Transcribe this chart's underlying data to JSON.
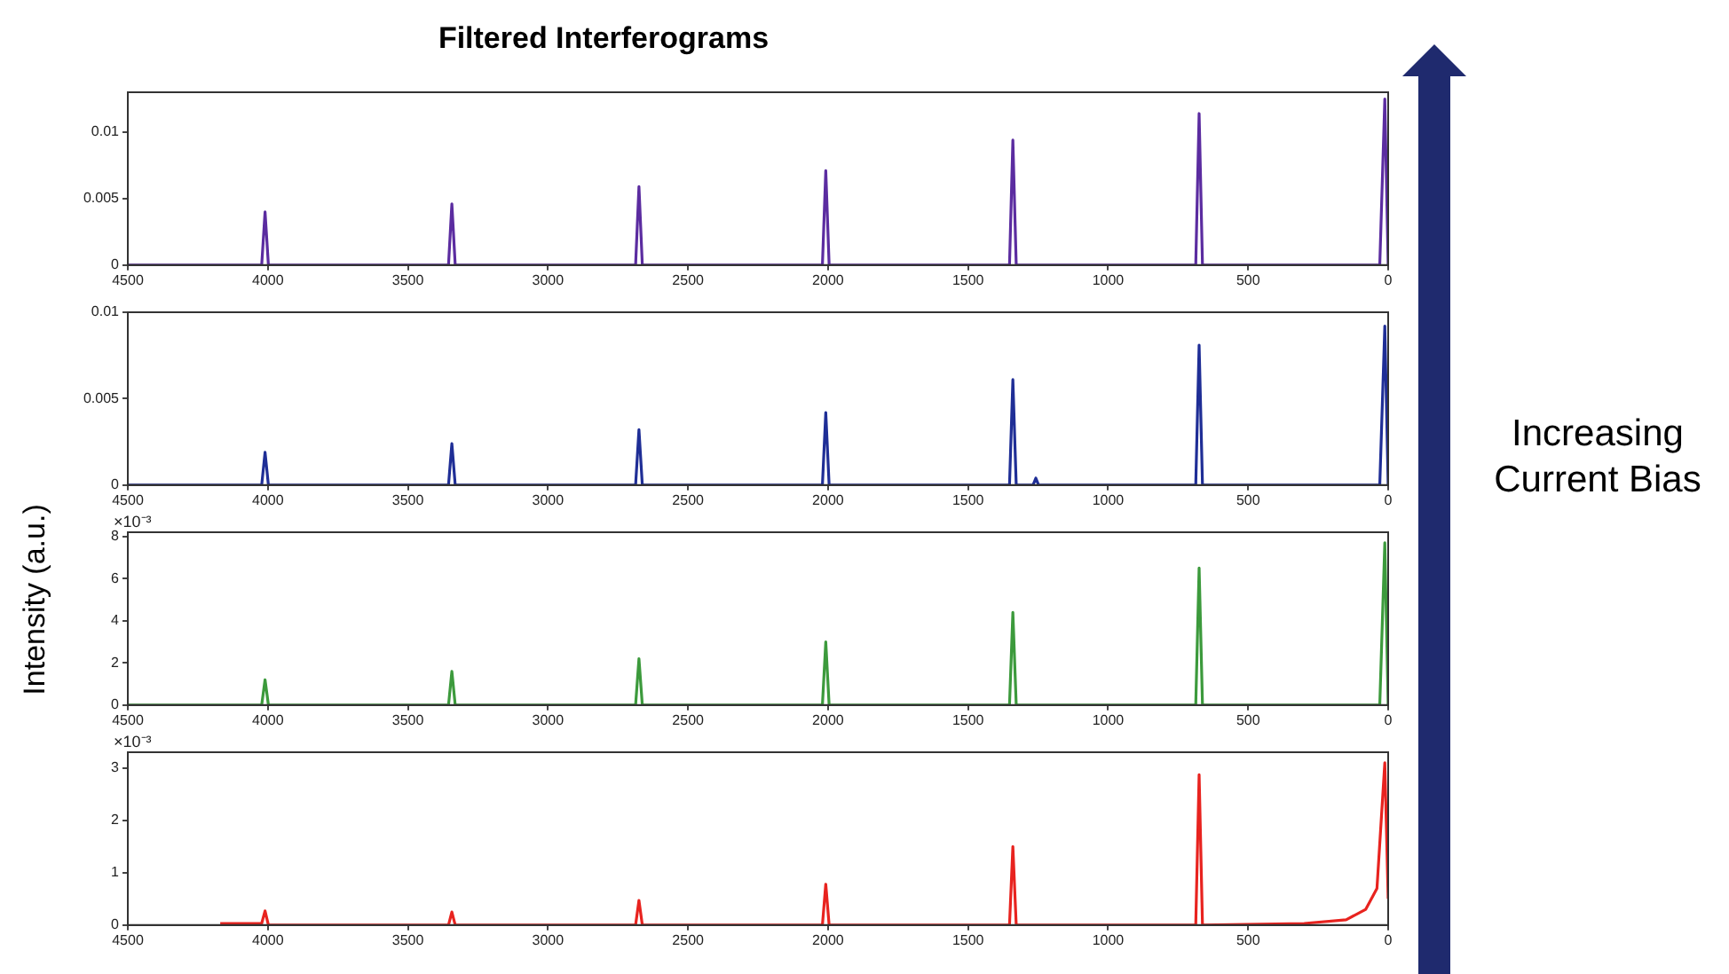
{
  "chart_data": [
    {
      "type": "line",
      "title": "Filtered Interferograms",
      "xlim": [
        4500,
        0
      ],
      "xticks": [
        4500,
        4000,
        3500,
        3000,
        2500,
        2000,
        1500,
        1000,
        500,
        0
      ],
      "ylim": [
        0,
        0.013
      ],
      "yticks": [
        0,
        0.005,
        0.01
      ],
      "marker": "none",
      "legend": false,
      "x": [
        4500,
        4022,
        4010,
        3998,
        3355,
        3343,
        3331,
        2687,
        2675,
        2663,
        2020,
        2008,
        1996,
        1352,
        1340,
        1328,
        687,
        675,
        663,
        30,
        12,
        0
      ],
      "series": [
        {
          "color": "#5b2ca0",
          "values": [
            0,
            0,
            0.004,
            0,
            0,
            0.0046,
            0,
            0,
            0.0059,
            0,
            0,
            0.0071,
            0,
            0,
            0.0094,
            0,
            0,
            0.0114,
            0,
            0,
            0.0125,
            0
          ]
        }
      ]
    },
    {
      "type": "line",
      "xlim": [
        4500,
        0
      ],
      "xticks": [
        4500,
        4000,
        3500,
        3000,
        2500,
        2000,
        1500,
        1000,
        500,
        0
      ],
      "ylim": [
        0,
        0.01
      ],
      "yticks": [
        0,
        0.005,
        0.01
      ],
      "marker": "none",
      "legend": false,
      "x": [
        4500,
        4022,
        4010,
        3998,
        3355,
        3343,
        3331,
        2687,
        2675,
        2663,
        2020,
        2008,
        1996,
        1352,
        1340,
        1328,
        1268,
        1258,
        1248,
        687,
        675,
        663,
        30,
        12,
        0
      ],
      "series": [
        {
          "color": "#1f2e96",
          "values": [
            0,
            0,
            0.0019,
            0,
            0,
            0.0024,
            0,
            0,
            0.0032,
            0,
            0,
            0.0042,
            0,
            0,
            0.0061,
            0,
            0,
            0.0004,
            0,
            0,
            0.0081,
            0,
            0,
            0.0092,
            0
          ]
        }
      ]
    },
    {
      "type": "line",
      "ylabel": "Intensity (a.u.)",
      "annotations": [
        "×10⁻³"
      ],
      "xlim": [
        4500,
        0
      ],
      "xticks": [
        4500,
        4000,
        3500,
        3000,
        2500,
        2000,
        1500,
        1000,
        500,
        0
      ],
      "ylim": [
        0,
        8.2
      ],
      "yticks": [
        0,
        2,
        4,
        6,
        8
      ],
      "marker": "none",
      "legend": false,
      "x": [
        4500,
        4022,
        4010,
        3998,
        3355,
        3343,
        3331,
        2687,
        2675,
        2663,
        2020,
        2008,
        1996,
        1352,
        1340,
        1328,
        687,
        675,
        663,
        30,
        12,
        0
      ],
      "series": [
        {
          "color": "#3c9a3c",
          "values": [
            0,
            0,
            1.2,
            0,
            0,
            1.6,
            0,
            0,
            2.2,
            0,
            0,
            3.0,
            0,
            0,
            4.4,
            0,
            0,
            6.5,
            0,
            0,
            7.7,
            0
          ]
        }
      ]
    },
    {
      "type": "line",
      "annotations": [
        "×10⁻³"
      ],
      "xlim": [
        4500,
        0
      ],
      "xticks": [
        4500,
        4000,
        3500,
        3000,
        2500,
        2000,
        1500,
        1000,
        500,
        0
      ],
      "ylim": [
        0,
        3.3
      ],
      "yticks": [
        0,
        1,
        2,
        3
      ],
      "marker": "none",
      "legend": false,
      "x": [
        4170,
        4022,
        4010,
        3998,
        3355,
        3343,
        3331,
        2687,
        2675,
        2663,
        2020,
        2008,
        1996,
        1352,
        1340,
        1328,
        687,
        675,
        663,
        300,
        150,
        80,
        40,
        12,
        0
      ],
      "series": [
        {
          "color": "#e8231f",
          "values": [
            0.03,
            0.03,
            0.27,
            0,
            0,
            0.25,
            0,
            0,
            0.47,
            0,
            0,
            0.78,
            0,
            0,
            1.5,
            0,
            0,
            2.87,
            0,
            0.03,
            0.1,
            0.3,
            0.7,
            3.1,
            0.5
          ]
        }
      ]
    },
    {
      "type": "other",
      "annotations": [
        "Increasing Current Bias"
      ]
    }
  ]
}
